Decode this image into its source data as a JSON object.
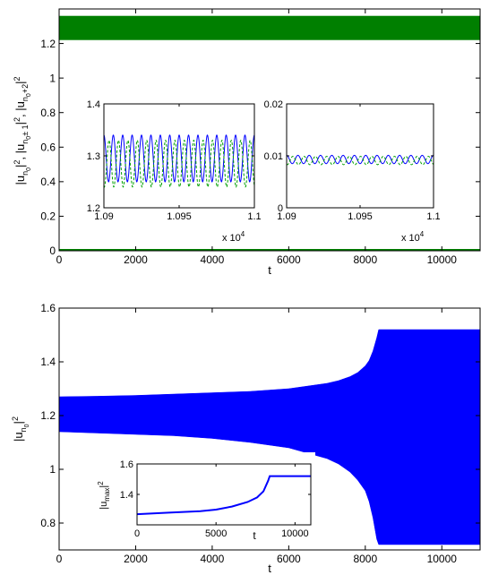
{
  "figure": {
    "top_panel": {
      "ylabel_parts": [
        "|u",
        "n",
        "0",
        "|",
        "2",
        ", |u",
        "n",
        "0",
        "± 1",
        "|",
        "2",
        ", |u",
        "n",
        "0",
        "+2",
        "|",
        "2"
      ],
      "xlabel": "t"
    },
    "top_inset_left": {
      "exponent_label": "x 10",
      "exponent_power": "4"
    },
    "top_inset_right": {
      "exponent_label": "x 10",
      "exponent_power": "4"
    },
    "bottom_panel": {
      "ylabel_parts": [
        "|u",
        "n",
        "0",
        "|",
        "2"
      ],
      "xlabel": "t"
    },
    "bottom_inset": {
      "ylabel_parts": [
        "|u",
        "max",
        "|",
        "2"
      ],
      "xlabel": "t"
    },
    "colors": {
      "blue": "#0000ff",
      "green": "#007f00",
      "green_dash": "#00a000"
    }
  },
  "chart_data": [
    {
      "id": "top-main",
      "type": "line",
      "xlim": [
        0,
        11000
      ],
      "ylim": [
        0,
        1.4
      ],
      "xticks": [
        0,
        2000,
        4000,
        6000,
        8000,
        10000
      ],
      "xticklabels": [
        "0",
        "2000",
        "4000",
        "6000",
        "8000",
        "10000"
      ],
      "yticks": [
        0,
        0.2,
        0.4,
        0.6,
        0.8,
        1,
        1.2
      ],
      "yticklabels": [
        "0",
        "0.2",
        "0.4",
        "0.6",
        "0.8",
        "1",
        "1.2"
      ],
      "series": [
        {
          "color": "green",
          "band": [
            1.22,
            1.36
          ]
        },
        {
          "color": "green",
          "band": [
            0.0,
            0.01
          ]
        }
      ]
    },
    {
      "id": "top-inset-left",
      "type": "line",
      "xlim": [
        1.09,
        1.1
      ],
      "ylim": [
        1.2,
        1.4
      ],
      "xticks": [
        1.09,
        1.095,
        1.1
      ],
      "xticklabels": [
        "1.09",
        "1.095",
        "1.1"
      ],
      "yticks": [
        1.2,
        1.3,
        1.4
      ],
      "yticklabels": [
        "1.2",
        "1.3",
        "1.4"
      ],
      "series": [
        {
          "color": "blue",
          "style": "solid",
          "center": 1.295,
          "amplitude": 0.045,
          "cycles": 16
        },
        {
          "color": "green_dash",
          "style": "dashed",
          "center": 1.285,
          "amplitude": 0.045,
          "cycles": 16
        }
      ]
    },
    {
      "id": "top-inset-right",
      "type": "line",
      "xlim": [
        1.09,
        1.1
      ],
      "ylim": [
        0,
        0.02
      ],
      "xticks": [
        1.09,
        1.095,
        1.1
      ],
      "xticklabels": [
        "1.09",
        "1.095",
        "1.1"
      ],
      "yticks": [
        0,
        0.01,
        0.02
      ],
      "yticklabels": [
        "0",
        "0.01",
        "0.02"
      ],
      "series": [
        {
          "color": "blue",
          "style": "solid",
          "center": 0.0093,
          "amplitude": 0.0008,
          "cycles": 13
        },
        {
          "color": "green_dash",
          "style": "dashed",
          "center": 0.0091,
          "amplitude": 0.0008,
          "cycles": 13
        }
      ]
    },
    {
      "id": "bottom-main",
      "type": "area",
      "xlim": [
        0,
        11000
      ],
      "ylim": [
        0.7,
        1.6
      ],
      "xticks": [
        0,
        2000,
        4000,
        6000,
        8000,
        10000
      ],
      "xticklabels": [
        "0",
        "2000",
        "4000",
        "6000",
        "8000",
        "10000"
      ],
      "yticks": [
        0.8,
        1,
        1.2,
        1.4,
        1.6
      ],
      "yticklabels": [
        "0.8",
        "1",
        "1.2",
        "1.4",
        "1.6"
      ],
      "series": [
        {
          "color": "blue",
          "x": [
            0,
            1000,
            2000,
            3000,
            4000,
            5000,
            5500,
            6000,
            6500,
            7000,
            7300,
            7600,
            7800,
            8000,
            8100,
            8200,
            8300,
            8350,
            8400,
            11000
          ],
          "upper": [
            1.27,
            1.272,
            1.275,
            1.28,
            1.285,
            1.29,
            1.295,
            1.3,
            1.31,
            1.32,
            1.33,
            1.345,
            1.36,
            1.385,
            1.405,
            1.44,
            1.49,
            1.52,
            1.52,
            1.52
          ],
          "lower": [
            1.14,
            1.135,
            1.13,
            1.125,
            1.115,
            1.1,
            1.09,
            1.08,
            1.06,
            1.04,
            1.02,
            0.99,
            0.96,
            0.92,
            0.88,
            0.82,
            0.74,
            0.72,
            0.72,
            0.72
          ]
        }
      ]
    },
    {
      "id": "bottom-inset",
      "type": "line",
      "xlim": [
        0,
        11000
      ],
      "ylim": [
        1.2,
        1.6
      ],
      "xticks": [
        0,
        5000,
        10000
      ],
      "xticklabels": [
        "0",
        "5000",
        "10000"
      ],
      "yticks": [
        1.4,
        1.6
      ],
      "yticklabels": [
        "1.4",
        "1.6"
      ],
      "series": [
        {
          "color": "blue",
          "x": [
            0,
            2000,
            4000,
            5000,
            6000,
            7000,
            7600,
            8000,
            8300,
            8400,
            11000
          ],
          "y": [
            1.27,
            1.28,
            1.29,
            1.3,
            1.32,
            1.35,
            1.38,
            1.42,
            1.49,
            1.52,
            1.52
          ]
        }
      ]
    }
  ]
}
